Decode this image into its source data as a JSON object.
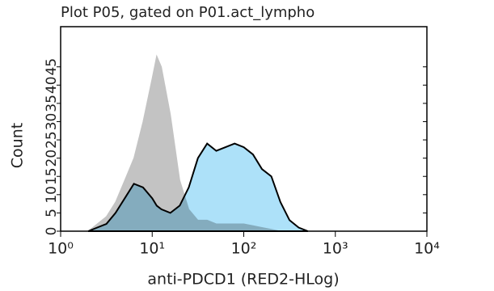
{
  "chart_data": {
    "type": "histogram-overlay",
    "title": "Plot P05, gated on P01.act_lympho",
    "xlabel": "anti-PDCD1 (RED2-HLog)",
    "ylabel": "Count",
    "xscale": "log",
    "xlim": [
      1,
      10000
    ],
    "xticks": [
      {
        "value": 1,
        "label": "10⁰"
      },
      {
        "value": 10,
        "label": "10¹"
      },
      {
        "value": 100,
        "label": "10²"
      },
      {
        "value": 1000,
        "label": "10³"
      },
      {
        "value": 10000,
        "label": "10⁴"
      }
    ],
    "ylim": [
      0,
      56
    ],
    "yticks": [
      0,
      5,
      10,
      15,
      20,
      25,
      30,
      35,
      40,
      45
    ],
    "x": [
      2.0,
      2.51,
      3.16,
      3.98,
      5.01,
      6.31,
      7.94,
      10,
      11.2,
      12.6,
      15.8,
      20,
      25.1,
      31.6,
      39.8,
      50.1,
      63.1,
      79.4,
      100,
      126,
      158,
      200,
      251,
      316,
      398,
      501
    ],
    "series": [
      {
        "color": "#c3c3c3",
        "values": [
          0,
          2,
          4,
          8,
          14,
          20,
          30,
          42,
          48,
          45,
          32,
          14,
          6,
          3,
          3,
          2,
          2,
          2,
          2,
          1.5,
          1,
          0.5,
          0,
          0,
          0,
          0
        ]
      },
      {
        "color": "#ade1f9",
        "values": [
          0,
          1,
          2,
          5,
          9,
          13,
          12,
          9,
          7,
          6,
          5,
          7,
          12,
          20,
          24,
          22,
          23,
          24,
          23,
          21,
          17,
          15,
          8,
          3,
          1,
          0
        ]
      }
    ]
  }
}
